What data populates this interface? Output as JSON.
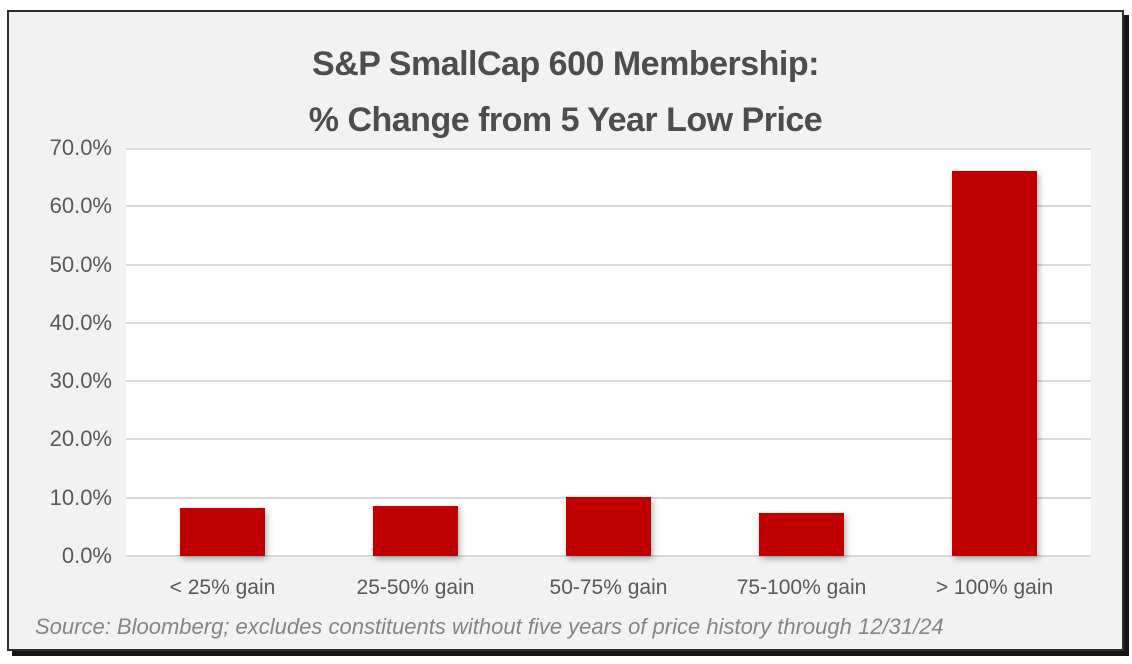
{
  "chart_data": {
    "type": "bar",
    "title_line1": "S&P SmallCap 600 Membership:",
    "title_line2": "% Change from 5 Year Low Price",
    "categories": [
      "< 25% gain",
      "25-50% gain",
      "50-75% gain",
      "75-100% gain",
      "> 100% gain"
    ],
    "values": [
      8.3,
      8.5,
      10.2,
      7.3,
      66.0
    ],
    "ylim": [
      0,
      70
    ],
    "ytick_step": 10,
    "ytick_labels": [
      "0.0%",
      "10.0%",
      "20.0%",
      "30.0%",
      "40.0%",
      "50.0%",
      "60.0%",
      "70.0%"
    ],
    "xlabel": "",
    "ylabel": "",
    "grid": true,
    "legend": "none",
    "source": "Source: Bloomberg; excludes constituents without five years of price history through 12/31/24"
  },
  "colors": {
    "bar": "#C00000",
    "gridline": "#d9d9d9",
    "chart_background": "#f2f2f2",
    "plot_background": "#ffffff",
    "title_text": "#4d4d4d",
    "axis_text": "#595959",
    "source_text": "#858585",
    "frame_border": "#2e2e2e"
  }
}
